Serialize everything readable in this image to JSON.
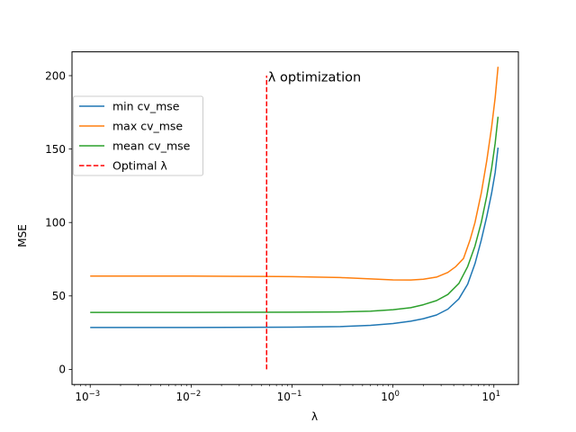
{
  "chart_data": {
    "type": "line",
    "title": "λ optimization",
    "xlabel": "λ",
    "ylabel": "MSE",
    "xscale": "log",
    "xlim": [
      0.00066,
      17.5
    ],
    "ylim": [
      -10.3,
      216.2
    ],
    "xticks": [
      {
        "value": 0.001,
        "base": "10",
        "exp": "−3"
      },
      {
        "value": 0.01,
        "base": "10",
        "exp": "−2"
      },
      {
        "value": 0.1,
        "base": "10",
        "exp": "−1"
      },
      {
        "value": 1,
        "base": "10",
        "exp": "0"
      },
      {
        "value": 10,
        "base": "10",
        "exp": "1"
      }
    ],
    "yticks": [
      0,
      50,
      100,
      150,
      200
    ],
    "grid": false,
    "legend": "top-left",
    "series": [
      {
        "name": "min cv_mse",
        "color": "#1f77b4",
        "style": "solid",
        "points": [
          [
            0.001,
            28.5
          ],
          [
            0.01,
            28.5
          ],
          [
            0.1,
            28.7
          ],
          [
            0.3,
            29.1
          ],
          [
            0.6,
            30.0
          ],
          [
            1.0,
            31.2
          ],
          [
            1.5,
            32.8
          ],
          [
            2.0,
            34.5
          ],
          [
            2.7,
            37.0
          ],
          [
            3.5,
            41.0
          ],
          [
            4.5,
            48.0
          ],
          [
            5.5,
            58.0
          ],
          [
            6.5,
            72.0
          ],
          [
            7.5,
            88.0
          ],
          [
            8.5,
            104.0
          ],
          [
            9.5,
            120.0
          ],
          [
            10.3,
            134.0
          ],
          [
            11.0,
            151.0
          ]
        ]
      },
      {
        "name": "max cv_mse",
        "color": "#ff7f0e",
        "style": "solid",
        "points": [
          [
            0.001,
            63.5
          ],
          [
            0.01,
            63.5
          ],
          [
            0.05,
            63.3
          ],
          [
            0.1,
            63.1
          ],
          [
            0.3,
            62.5
          ],
          [
            0.6,
            61.6
          ],
          [
            1.0,
            60.9
          ],
          [
            1.5,
            60.8
          ],
          [
            2.0,
            61.4
          ],
          [
            2.7,
            62.8
          ],
          [
            3.5,
            66.0
          ],
          [
            4.2,
            70.0
          ],
          [
            5.0,
            75.5
          ],
          [
            5.8,
            88.0
          ],
          [
            6.5,
            100.0
          ],
          [
            7.5,
            120.0
          ],
          [
            8.5,
            142.0
          ],
          [
            9.5,
            165.0
          ],
          [
            10.3,
            185.0
          ],
          [
            11.0,
            206.0
          ]
        ]
      },
      {
        "name": "mean cv_mse",
        "color": "#2ca02c",
        "style": "solid",
        "points": [
          [
            0.001,
            38.8
          ],
          [
            0.01,
            38.8
          ],
          [
            0.1,
            38.9
          ],
          [
            0.3,
            39.1
          ],
          [
            0.6,
            39.6
          ],
          [
            1.0,
            40.6
          ],
          [
            1.5,
            42.0
          ],
          [
            2.0,
            44.0
          ],
          [
            2.7,
            46.8
          ],
          [
            3.5,
            51.0
          ],
          [
            4.5,
            58.5
          ],
          [
            5.5,
            70.0
          ],
          [
            6.5,
            84.0
          ],
          [
            7.5,
            100.0
          ],
          [
            8.5,
            118.0
          ],
          [
            9.5,
            137.0
          ],
          [
            10.3,
            154.0
          ],
          [
            11.0,
            172.0
          ]
        ]
      },
      {
        "name": "Optimal λ",
        "color": "#ff0000",
        "style": "dashed",
        "points": [
          [
            0.056,
            0
          ],
          [
            0.056,
            200
          ]
        ]
      }
    ]
  }
}
